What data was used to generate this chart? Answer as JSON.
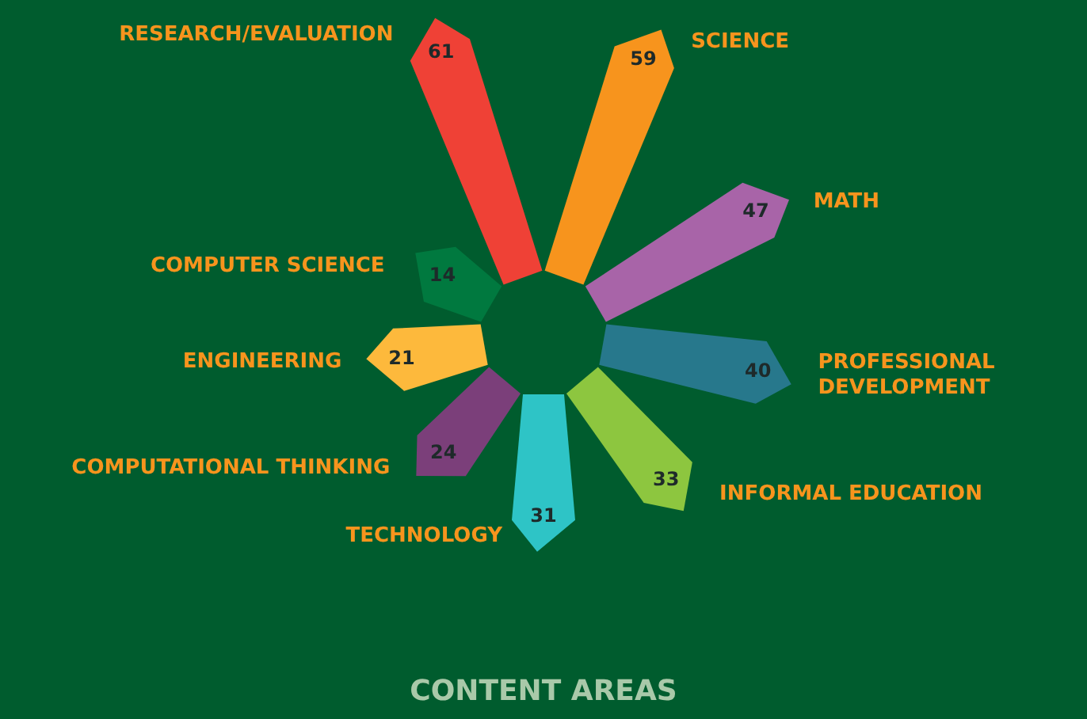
{
  "chart_data": {
    "type": "other",
    "title": "CONTENT AREAS",
    "categories": [
      "RESEARCH/EVALUATION",
      "SCIENCE",
      "MATH",
      "PROFESSIONAL DEVELOPMENT",
      "INFORMAL EDUCATION",
      "TECHNOLOGY",
      "COMPUTATIONAL THINKING",
      "ENGINEERING",
      "COMPUTER SCIENCE"
    ],
    "values": [
      61,
      59,
      47,
      40,
      33,
      31,
      24,
      21,
      14
    ],
    "colors": [
      "#ef4136",
      "#f7941d",
      "#a864a8",
      "#27788c",
      "#8dc63f",
      "#2ec4c6",
      "#7b3f7a",
      "#fdb93c",
      "#00793f"
    ],
    "data_labels": true,
    "legend": false
  }
}
